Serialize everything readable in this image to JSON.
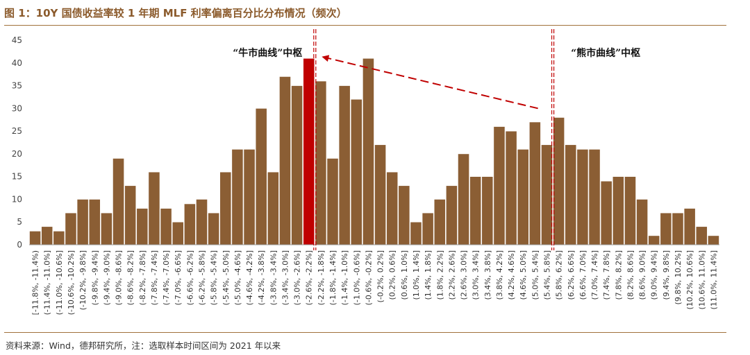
{
  "title": "图 1：10Y 国债收益率较 1 年期 MLF 利率偏离百分比分布情况（频次）",
  "source": "资料来源：Wind，德邦研究所，注：选取样本时间区间为 2021 年以来",
  "colors": {
    "bar": "#8b5e34",
    "highlight": "#c00000",
    "marker": "#c00000",
    "arrow": "#c00000",
    "axis": "#a0703a"
  },
  "chart_data": {
    "type": "bar",
    "title": "图 1：10Y 国债收益率较 1 年期 MLF 利率偏离百分比分布情况（频次）",
    "xlabel": "",
    "ylabel": "",
    "ylim": [
      0,
      45
    ],
    "yticks": [
      0,
      5,
      10,
      15,
      20,
      25,
      30,
      35,
      40,
      45
    ],
    "grid": false,
    "legend": "none",
    "categories": [
      "[-11.8%, -11.4%)",
      "(-11.4%, -11.0%]",
      "(-11.0%, -10.6%]",
      "(-10.6%, -10.2%]",
      "(-10.2%, -9.8%]",
      "(-9.8%, -9.4%]",
      "(-9.4%, -9.0%]",
      "(-9.0%, -8.6%]",
      "(-8.6%, -8.2%]",
      "(-8.2%, -7.8%]",
      "(-7.8%, -7.4%]",
      "(-7.4%, -7.0%]",
      "(-7.0%, -6.6%]",
      "(-6.6%, -6.2%]",
      "(-6.2%, -5.8%]",
      "(-5.8%, -5.4%]",
      "(-5.4%, -5.0%]",
      "(-5.0%, -4.6%]",
      "(-4.6%, -4.2%]",
      "(-4.2%, -3.8%]",
      "(-3.8%, -3.4%]",
      "(-3.4%, -3.0%]",
      "(-3.0%, -2.6%]",
      "(-2.6%, -2.2%]",
      "(-2.2%, -1.8%]",
      "(-1.8%, -1.4%]",
      "(-1.4%, -1.0%]",
      "(-1.0%, -0.6%]",
      "(-0.6%, -0.2%]",
      "(-0.2%, 0.2%]",
      "(0.2%, 0.6%]",
      "(0.6%, 1.0%]",
      "(1.0%, 1.4%]",
      "(1.4%, 1.8%]",
      "(1.8%, 2.2%]",
      "(2.2%, 2.6%]",
      "(2.6%, 3.0%]",
      "(3.0%, 3.4%]",
      "(3.4%, 3.8%]",
      "(3.8%, 4.2%]",
      "(4.2%, 4.6%]",
      "(4.6%, 5.0%]",
      "(5.0%, 5.4%]",
      "(5.4%, 5.8%]",
      "(5.8%, 6.2%]",
      "(6.2%, 6.6%]",
      "(6.6%, 7.0%]",
      "(7.0%, 7.4%]",
      "(7.4%, 7.8%]",
      "(7.8%, 8.2%]",
      "(8.2%, 8.6%]",
      "(8.6%, 9.0%]",
      "(9.0%, 9.4%]",
      "(9.4%, 9.8%]",
      "(9.8%, 10.2%]",
      "(10.2%, 10.6%]",
      "(10.6%, 11.0%]",
      "(11.0%, 11.4%]"
    ],
    "values": [
      3,
      4,
      3,
      7,
      10,
      10,
      7,
      19,
      13,
      8,
      16,
      8,
      5,
      9,
      10,
      7,
      16,
      21,
      21,
      30,
      16,
      37,
      35,
      41,
      36,
      19,
      35,
      32,
      41,
      22,
      16,
      13,
      5,
      7,
      10,
      13,
      20,
      15,
      15,
      26,
      25,
      21,
      27,
      22,
      28,
      22,
      21,
      21,
      14,
      15,
      15,
      10,
      2,
      7,
      7,
      8,
      4,
      2
    ],
    "highlight_index": 23,
    "annotations": [
      {
        "text": "“牛市曲线”中枢",
        "at_category_index": 24
      },
      {
        "text": "“熊市曲线”中枢",
        "at_category_index": 44
      }
    ],
    "arrow": {
      "from_category_index": 44,
      "to_category_index": 24,
      "style": "dashed",
      "direction": "toward bull-curve center"
    }
  }
}
